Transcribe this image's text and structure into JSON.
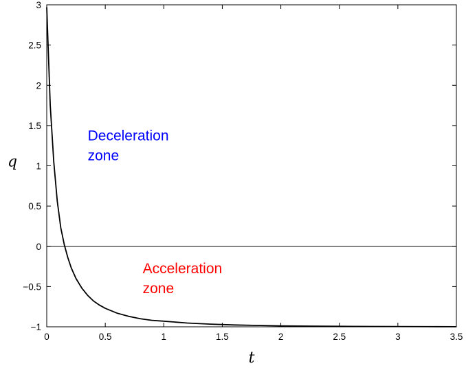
{
  "chart_data": {
    "type": "line",
    "title": "",
    "xlabel": "t",
    "ylabel": "q",
    "xlim": [
      0,
      3.5
    ],
    "ylim": [
      -1,
      3
    ],
    "grid": false,
    "x_ticks": [
      0,
      0.5,
      1,
      1.5,
      2,
      2.5,
      3,
      3.5
    ],
    "x_tick_labels": [
      "0",
      "0.5",
      "1",
      "1.5",
      "2",
      "2.5",
      "3",
      "3.5"
    ],
    "y_ticks": [
      -1,
      -0.5,
      0,
      0.5,
      1,
      1.5,
      2,
      2.5,
      3
    ],
    "y_tick_labels": [
      "−1",
      "−0.5",
      "0",
      "0.5",
      "1",
      "1.5",
      "2",
      "2.5",
      "3"
    ],
    "series": [
      {
        "color": "#000000",
        "x": [
          0,
          0.03,
          0.06,
          0.09,
          0.12,
          0.15,
          0.18,
          0.21,
          0.25,
          0.3,
          0.35,
          0.4,
          0.45,
          0.5,
          0.6,
          0.7,
          0.8,
          0.9,
          1.0,
          1.2,
          1.4,
          1.6,
          1.8,
          2.0,
          2.25,
          2.5,
          2.75,
          3.0,
          3.25,
          3.5
        ],
        "y": [
          2.97,
          1.75,
          1.05,
          0.56,
          0.23,
          0.02,
          -0.14,
          -0.27,
          -0.4,
          -0.52,
          -0.61,
          -0.68,
          -0.73,
          -0.77,
          -0.83,
          -0.87,
          -0.9,
          -0.92,
          -0.93,
          -0.953,
          -0.967,
          -0.977,
          -0.983,
          -0.988,
          -0.992,
          -0.994,
          -0.996,
          -0.997,
          -0.998,
          -0.999
        ]
      }
    ],
    "reference_line": {
      "y": 0,
      "color": "#000000"
    },
    "annotations": [
      {
        "lines": [
          "Deceleration",
          "zone"
        ],
        "x": 0.35,
        "y": 1.3,
        "color": "#0000ff"
      },
      {
        "lines": [
          "Acceleration",
          "zone"
        ],
        "x": 0.82,
        "y": -0.35,
        "color": "#ff0000"
      }
    ]
  }
}
